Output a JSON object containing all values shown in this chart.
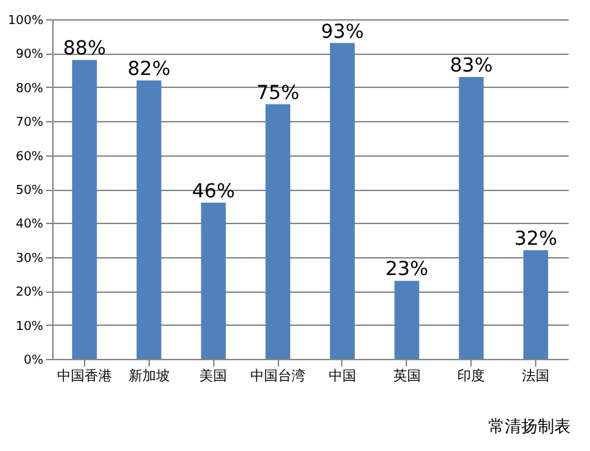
{
  "chart_data": {
    "type": "bar",
    "categories": [
      "中国香港",
      "新加坡",
      "美国",
      "中国台湾",
      "中国",
      "英国",
      "印度",
      "法国"
    ],
    "values": [
      88,
      82,
      46,
      75,
      93,
      23,
      83,
      32
    ],
    "value_labels": [
      "88%",
      "82%",
      "46%",
      "75%",
      "93%",
      "23%",
      "83%",
      "32%"
    ],
    "color": "#4f81bd",
    "ylim": [
      0,
      100
    ],
    "yticks": [
      {
        "value": 0,
        "label": "0%"
      },
      {
        "value": 10,
        "label": "10%"
      },
      {
        "value": 20,
        "label": "20%"
      },
      {
        "value": 30,
        "label": "30%"
      },
      {
        "value": 40,
        "label": "40%"
      },
      {
        "value": 50,
        "label": "50%"
      },
      {
        "value": 60,
        "label": "60%"
      },
      {
        "value": 70,
        "label": "70%"
      },
      {
        "value": 80,
        "label": "80%"
      },
      {
        "value": 90,
        "label": "90%"
      },
      {
        "value": 100,
        "label": "100%"
      }
    ],
    "grid": "y",
    "annotations": [
      "常清扬制表"
    ]
  }
}
